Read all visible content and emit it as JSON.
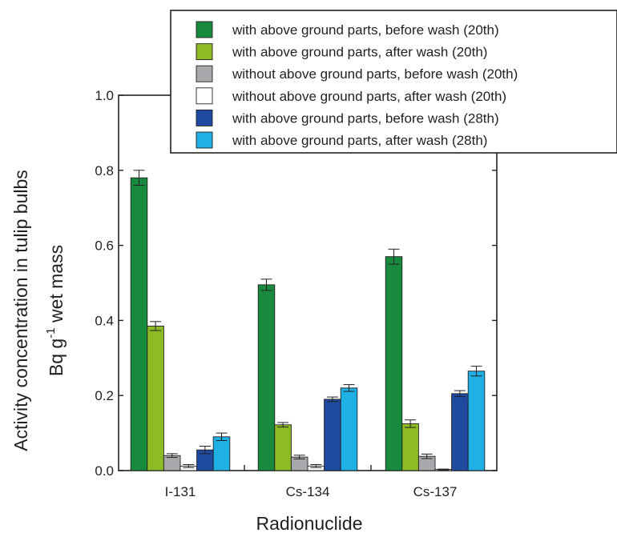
{
  "chart_data": {
    "type": "bar",
    "title": "",
    "xlabel": "Radionuclide",
    "ylabel_line1": "Activity concentration in tulip bulbs",
    "ylabel_line2_prefix": "Bq g",
    "ylabel_line2_sup": "-1",
    "ylabel_line2_suffix": " wet mass",
    "ylim": [
      0,
      1.0
    ],
    "yticks": [
      0.0,
      0.2,
      0.4,
      0.6,
      0.8,
      1.0
    ],
    "ytick_labels": [
      "0.0",
      "0.2",
      "0.4",
      "0.6",
      "0.8",
      "1.0"
    ],
    "categories": [
      "I-131",
      "Cs-134",
      "Cs-137"
    ],
    "legend_position": "top-right",
    "grid": false,
    "series": [
      {
        "name": "with above ground parts, before wash (20th)",
        "color": "#178a3e",
        "values": [
          0.78,
          0.495,
          0.57
        ],
        "errors": [
          0.02,
          0.015,
          0.02
        ]
      },
      {
        "name": "with above ground parts, after wash (20th)",
        "color": "#8dbb25",
        "values": [
          0.385,
          0.122,
          0.125
        ],
        "errors": [
          0.012,
          0.006,
          0.01
        ]
      },
      {
        "name": "without above ground parts, before wash (20th)",
        "color": "#a7a9ac",
        "values": [
          0.04,
          0.036,
          0.038
        ],
        "errors": [
          0.005,
          0.005,
          0.006
        ]
      },
      {
        "name": "without above ground parts, after wash (20th)",
        "color": "#ffffff",
        "values": [
          0.012,
          0.012,
          0.003
        ],
        "errors": [
          0.004,
          0.004,
          0.001
        ]
      },
      {
        "name": "with above ground parts, before wash (28th)",
        "color": "#1e4aa0",
        "values": [
          0.055,
          0.19,
          0.205
        ],
        "errors": [
          0.01,
          0.006,
          0.008
        ]
      },
      {
        "name": "with above ground parts, after wash (28th)",
        "color": "#1fb0e6",
        "values": [
          0.09,
          0.22,
          0.265
        ],
        "errors": [
          0.01,
          0.009,
          0.013
        ]
      }
    ]
  }
}
